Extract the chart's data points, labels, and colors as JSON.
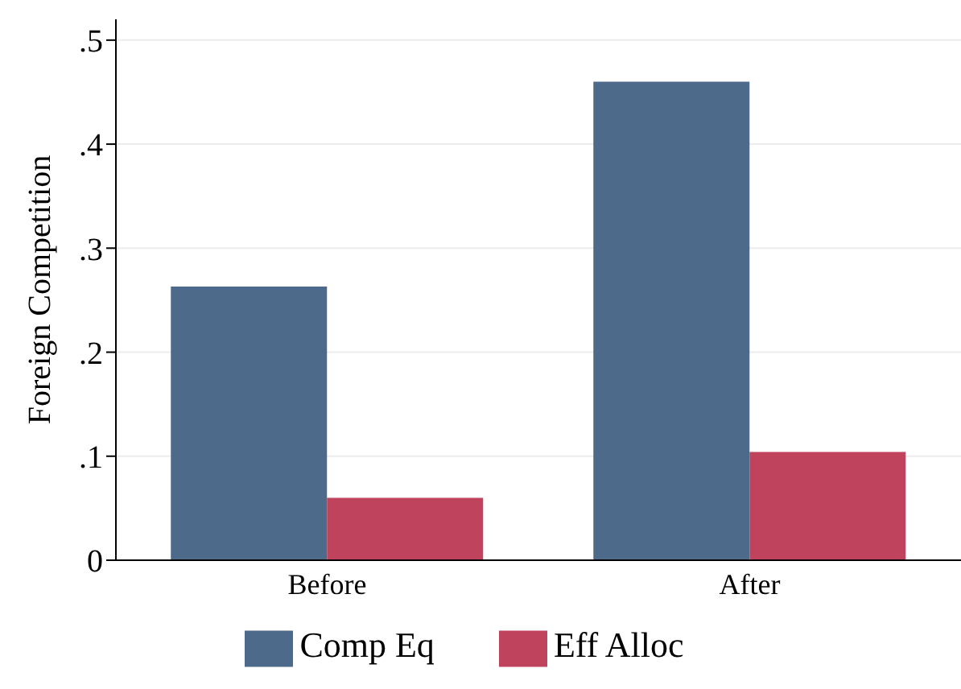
{
  "chart_data": {
    "type": "bar",
    "ylabel": "Foreign Competition",
    "categories": [
      "Before",
      "After"
    ],
    "series": [
      {
        "name": "Comp Eq",
        "color": "#4e6a8a",
        "values": [
          0.263,
          0.46
        ]
      },
      {
        "name": "Eff Alloc",
        "color": "#c0435e",
        "values": [
          0.06,
          0.104
        ]
      }
    ],
    "ylim": [
      0,
      0.52
    ],
    "yticks": [
      {
        "value": 0,
        "label": "0"
      },
      {
        "value": 0.1,
        "label": ".1"
      },
      {
        "value": 0.2,
        "label": ".2"
      },
      {
        "value": 0.3,
        "label": ".3"
      },
      {
        "value": 0.4,
        "label": ".4"
      },
      {
        "value": 0.5,
        "label": ".5"
      }
    ],
    "grid": "y",
    "legend": "bottom"
  }
}
